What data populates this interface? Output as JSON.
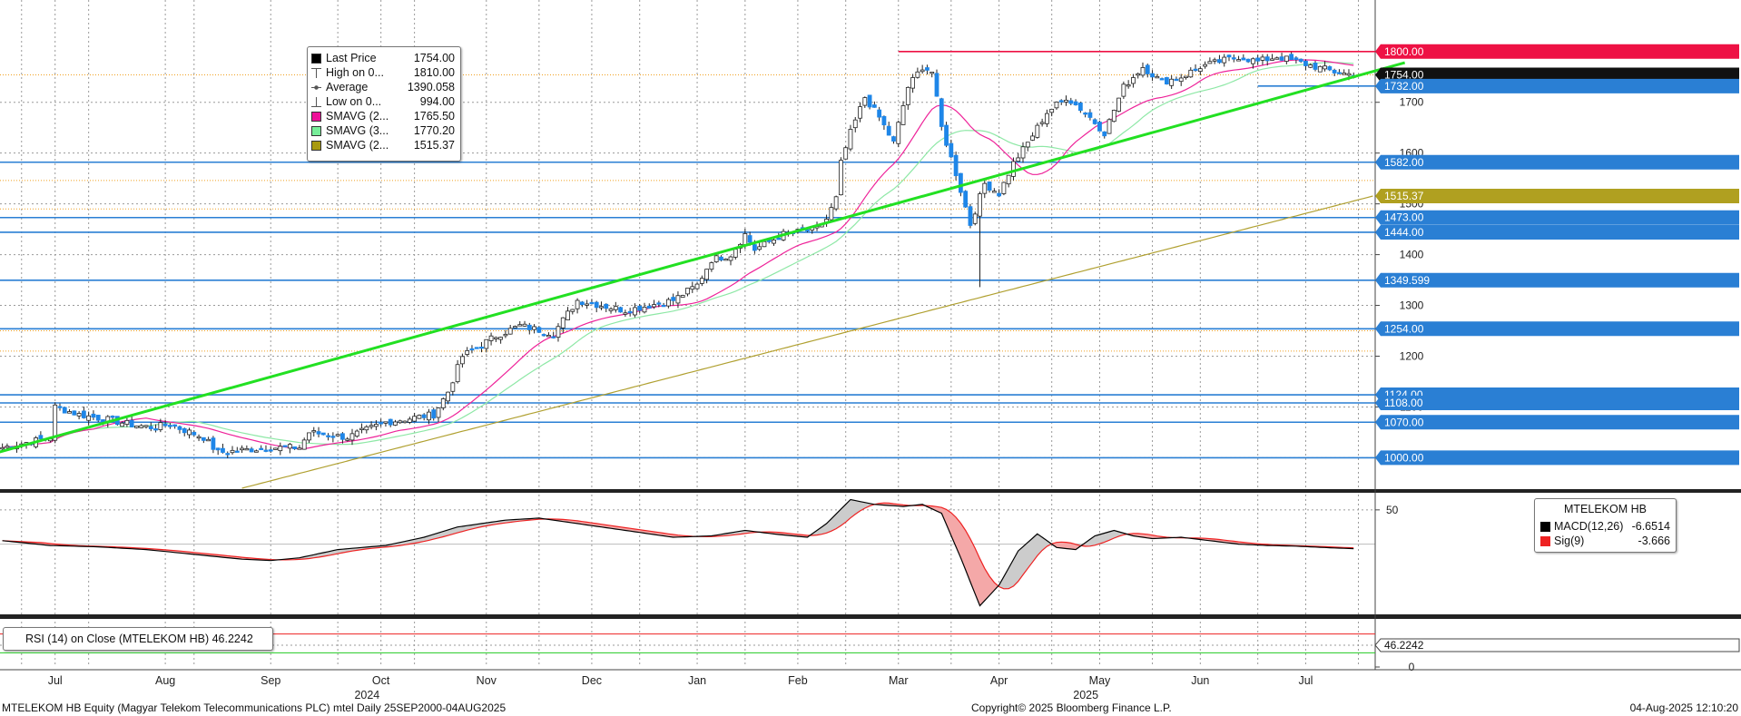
{
  "chart_data": {
    "type": "candlestick",
    "ticker": "MTELEKOM HB",
    "price_axis": {
      "ylim": [
        940,
        1880
      ],
      "ticks": [
        1000,
        1100,
        1200,
        1300,
        1400,
        1500,
        1600,
        1700
      ]
    },
    "macd_axis": {
      "ylim": [
        -100,
        75
      ],
      "ticks": [
        50
      ]
    },
    "rsi_axis": {
      "ylim": [
        0,
        100
      ],
      "ticks": [
        0
      ]
    },
    "month_labels": [
      {
        "label": "Jul",
        "i": 11
      },
      {
        "label": "Aug",
        "i": 34
      },
      {
        "label": "Sep",
        "i": 56
      },
      {
        "label": "Oct",
        "i": 79
      },
      {
        "label": "Nov",
        "i": 101
      },
      {
        "label": "Dec",
        "i": 123
      },
      {
        "label": "Jan",
        "i": 145
      },
      {
        "label": "Feb",
        "i": 166
      },
      {
        "label": "Mar",
        "i": 187
      },
      {
        "label": "Apr",
        "i": 208
      },
      {
        "label": "May",
        "i": 229
      },
      {
        "label": "Jun",
        "i": 250
      },
      {
        "label": "Jul",
        "i": 272
      }
    ],
    "year_labels": [
      {
        "label": "2024",
        "i": 60
      },
      {
        "label": "2025",
        "i": 210
      }
    ],
    "close_key_points": [
      [
        0,
        1020
      ],
      [
        5,
        1030
      ],
      [
        10,
        1040
      ],
      [
        11,
        1100
      ],
      [
        16,
        1085
      ],
      [
        22,
        1075
      ],
      [
        27,
        1065
      ],
      [
        31,
        1060
      ],
      [
        35,
        1065
      ],
      [
        42,
        1040
      ],
      [
        45,
        1010
      ],
      [
        50,
        1015
      ],
      [
        56,
        1020
      ],
      [
        62,
        1020
      ],
      [
        64,
        1050
      ],
      [
        72,
        1040
      ],
      [
        80,
        1070
      ],
      [
        90,
        1085
      ],
      [
        93,
        1130
      ],
      [
        96,
        1200
      ],
      [
        103,
        1240
      ],
      [
        108,
        1260
      ],
      [
        115,
        1245
      ],
      [
        120,
        1310
      ],
      [
        125,
        1300
      ],
      [
        130,
        1290
      ],
      [
        135,
        1300
      ],
      [
        140,
        1310
      ],
      [
        145,
        1340
      ],
      [
        148,
        1390
      ],
      [
        152,
        1400
      ],
      [
        155,
        1440
      ],
      [
        157,
        1410
      ],
      [
        163,
        1440
      ],
      [
        170,
        1450
      ],
      [
        172,
        1470
      ],
      [
        174,
        1510
      ],
      [
        175,
        1580
      ],
      [
        177,
        1640
      ],
      [
        180,
        1710
      ],
      [
        183,
        1670
      ],
      [
        186,
        1620
      ],
      [
        189,
        1730
      ],
      [
        192,
        1770
      ],
      [
        194,
        1760
      ],
      [
        196,
        1650
      ],
      [
        199,
        1560
      ],
      [
        202,
        1460
      ],
      [
        205,
        1540
      ],
      [
        208,
        1520
      ],
      [
        211,
        1580
      ],
      [
        214,
        1620
      ],
      [
        218,
        1680
      ],
      [
        222,
        1710
      ],
      [
        226,
        1680
      ],
      [
        230,
        1640
      ],
      [
        234,
        1730
      ],
      [
        238,
        1770
      ],
      [
        242,
        1740
      ],
      [
        246,
        1750
      ],
      [
        250,
        1770
      ],
      [
        254,
        1780
      ],
      [
        258,
        1790
      ],
      [
        262,
        1780
      ],
      [
        266,
        1790
      ],
      [
        270,
        1780
      ],
      [
        274,
        1770
      ],
      [
        278,
        1760
      ],
      [
        282,
        1754
      ]
    ],
    "wick_events": [
      {
        "i": 204,
        "low": 1336
      }
    ],
    "horizontal_levels": [
      {
        "value": 1800,
        "color": "#ee1144",
        "label": "1800.00"
      },
      {
        "value": 1754,
        "color": "#111111",
        "label": "1754.00",
        "last": true
      },
      {
        "value": 1732,
        "color": "#2a7fd4",
        "label": "1732.00"
      },
      {
        "value": 1582,
        "color": "#2a7fd4",
        "label": "1582.00"
      },
      {
        "value": 1515.37,
        "color": "#a8a020",
        "label": "1515.37"
      },
      {
        "value": 1473,
        "color": "#2a7fd4",
        "label": "1473.00"
      },
      {
        "value": 1444,
        "color": "#2a7fd4",
        "label": "1444.00"
      },
      {
        "value": 1349.599,
        "color": "#2a7fd4",
        "label": "1349.599"
      },
      {
        "value": 1254,
        "color": "#2a7fd4",
        "label": "1254.00"
      },
      {
        "value": 1124,
        "color": "#2a7fd4",
        "label": "1124.00"
      },
      {
        "value": 1108,
        "color": "#2a7fd4",
        "label": "1108.00"
      },
      {
        "value": 1070,
        "color": "#2a7fd4",
        "label": "1070.00"
      },
      {
        "value": 1000,
        "color": "#2a7fd4",
        "label": "1000.00"
      }
    ],
    "orange_dotted_levels": [
      1754,
      1546,
      1490,
      1250,
      1210
    ],
    "trendline": {
      "start": {
        "i": 0,
        "value": 1010
      },
      "end": {
        "i": 287,
        "value": 1778
      },
      "color": "#22e022"
    },
    "resistance_segment": {
      "start_i": 187,
      "value": 1800
    },
    "box_segment": {
      "start_i": 262,
      "value": 1732
    },
    "legend": [
      {
        "name": "Last Price",
        "value": "1754.00",
        "color": "#000000",
        "kind": "square"
      },
      {
        "name": "High on 0...",
        "value": "1810.00",
        "color": "#555555",
        "kind": "high"
      },
      {
        "name": "Average",
        "value": "1390.058",
        "color": "#555555",
        "kind": "avg"
      },
      {
        "name": "Low on 0...",
        "value": "994.00",
        "color": "#555555",
        "kind": "low"
      },
      {
        "name": "SMAVG (2...",
        "value": "1765.50",
        "color": "#ee1199",
        "kind": "square"
      },
      {
        "name": "SMAVG (3...",
        "value": "1770.20",
        "color": "#77ee99",
        "kind": "square"
      },
      {
        "name": "SMAVG (2...",
        "value": "1515.37",
        "color": "#a89a10",
        "kind": "square"
      }
    ],
    "macd": {
      "title": "MTELEKOM HB",
      "macd_label": "MACD(12,26)",
      "macd_value": "-6.6514",
      "macd_color": "#000000",
      "sig_label": "Sig(9)",
      "sig_value": "-3.666",
      "sig_color": "#ee2222",
      "tag": "-6.6514",
      "key_points": [
        [
          0,
          5
        ],
        [
          10,
          -2
        ],
        [
          20,
          -4
        ],
        [
          30,
          -8
        ],
        [
          40,
          -15
        ],
        [
          50,
          -22
        ],
        [
          56,
          -24
        ],
        [
          62,
          -20
        ],
        [
          70,
          -8
        ],
        [
          80,
          -2
        ],
        [
          88,
          10
        ],
        [
          95,
          25
        ],
        [
          105,
          35
        ],
        [
          112,
          38
        ],
        [
          118,
          32
        ],
        [
          125,
          25
        ],
        [
          132,
          18
        ],
        [
          140,
          10
        ],
        [
          148,
          12
        ],
        [
          155,
          20
        ],
        [
          162,
          14
        ],
        [
          168,
          10
        ],
        [
          172,
          30
        ],
        [
          177,
          65
        ],
        [
          182,
          58
        ],
        [
          188,
          55
        ],
        [
          192,
          58
        ],
        [
          196,
          45
        ],
        [
          200,
          -20
        ],
        [
          204,
          -90
        ],
        [
          208,
          -60
        ],
        [
          212,
          -10
        ],
        [
          216,
          15
        ],
        [
          220,
          -5
        ],
        [
          224,
          -8
        ],
        [
          228,
          12
        ],
        [
          232,
          20
        ],
        [
          236,
          12
        ],
        [
          240,
          8
        ],
        [
          246,
          10
        ],
        [
          252,
          5
        ],
        [
          258,
          0
        ],
        [
          264,
          -2
        ],
        [
          270,
          -3
        ],
        [
          276,
          -5
        ],
        [
          282,
          -6.65
        ]
      ]
    },
    "rsi": {
      "label": "RSI (14)  on Close (MTELEKOM HB) 46.2242",
      "value": 46.2242,
      "tag": "46.2242",
      "upper": 70,
      "lower": 30
    },
    "footer": {
      "left": "MTELEKOM HB Equity (Magyar Telekom Telecommunications PLC) mtel  Daily 25SEP2000-04AUG2025",
      "center": "Copyright© 2025 Bloomberg Finance L.P.",
      "right": "04-Aug-2025 12:10:20"
    }
  }
}
